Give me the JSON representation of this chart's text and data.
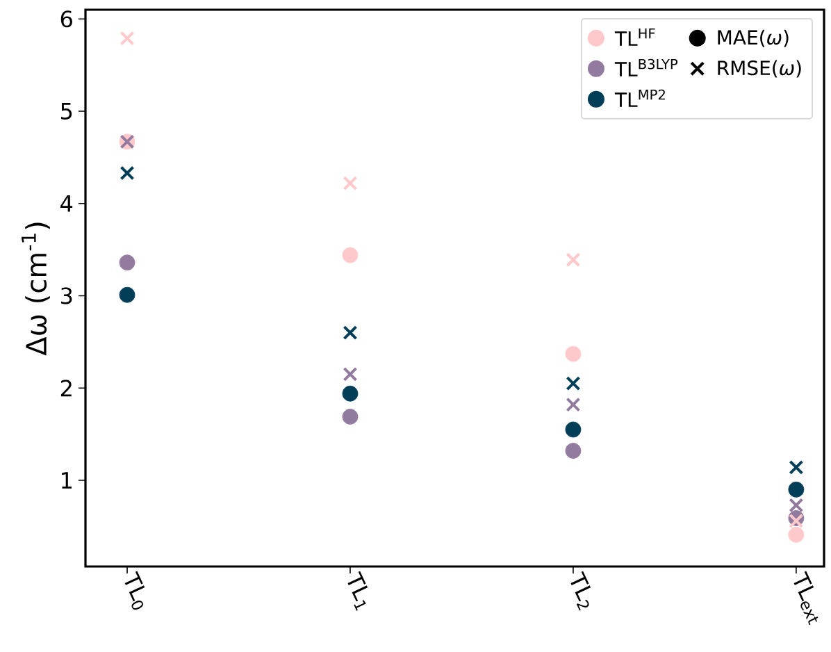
{
  "chart_data": {
    "type": "scatter",
    "ylabel": "Δω (cm$^{-1}$)",
    "categories": [
      "TL$_{0}$",
      "TL$_{1}$",
      "TL$_{2}$",
      "TL$_{ext}$"
    ],
    "ylim": [
      0.066,
      6.1
    ],
    "yticks": [
      1,
      2,
      3,
      4,
      5,
      6
    ],
    "legend": "top right",
    "series": [
      {
        "name": "TL$^{HF}$",
        "color": "#ffc9cc",
        "marker": "circle",
        "values": [
          4.67,
          3.44,
          2.37,
          0.41
        ]
      },
      {
        "name": "TL$^{B3LYP}$",
        "color": "#927b9e",
        "marker": "circle",
        "values": [
          3.36,
          1.69,
          1.32,
          0.59
        ]
      },
      {
        "name": "TL$^{MP2}$",
        "color": "#023e58",
        "marker": "circle",
        "values": [
          3.01,
          1.94,
          1.55,
          0.9
        ]
      },
      {
        "name": "MAE(*ω*)",
        "color": "#000000",
        "marker": "circle",
        "values": [
          null,
          null,
          null,
          null
        ]
      },
      {
        "name": "RMSE(*ω*)",
        "color": "#000000",
        "marker": "cross",
        "values": [
          null,
          null,
          null,
          null
        ]
      },
      {
        "color": "#ffc9cc",
        "marker": "cross",
        "values": [
          5.79,
          4.22,
          3.39,
          0.56
        ]
      },
      {
        "color": "#927b9e",
        "marker": "cross",
        "values": [
          4.67,
          2.15,
          1.82,
          0.73
        ]
      },
      {
        "color": "#023e58",
        "marker": "cross",
        "values": [
          4.33,
          2.6,
          2.05,
          1.14
        ]
      }
    ]
  }
}
